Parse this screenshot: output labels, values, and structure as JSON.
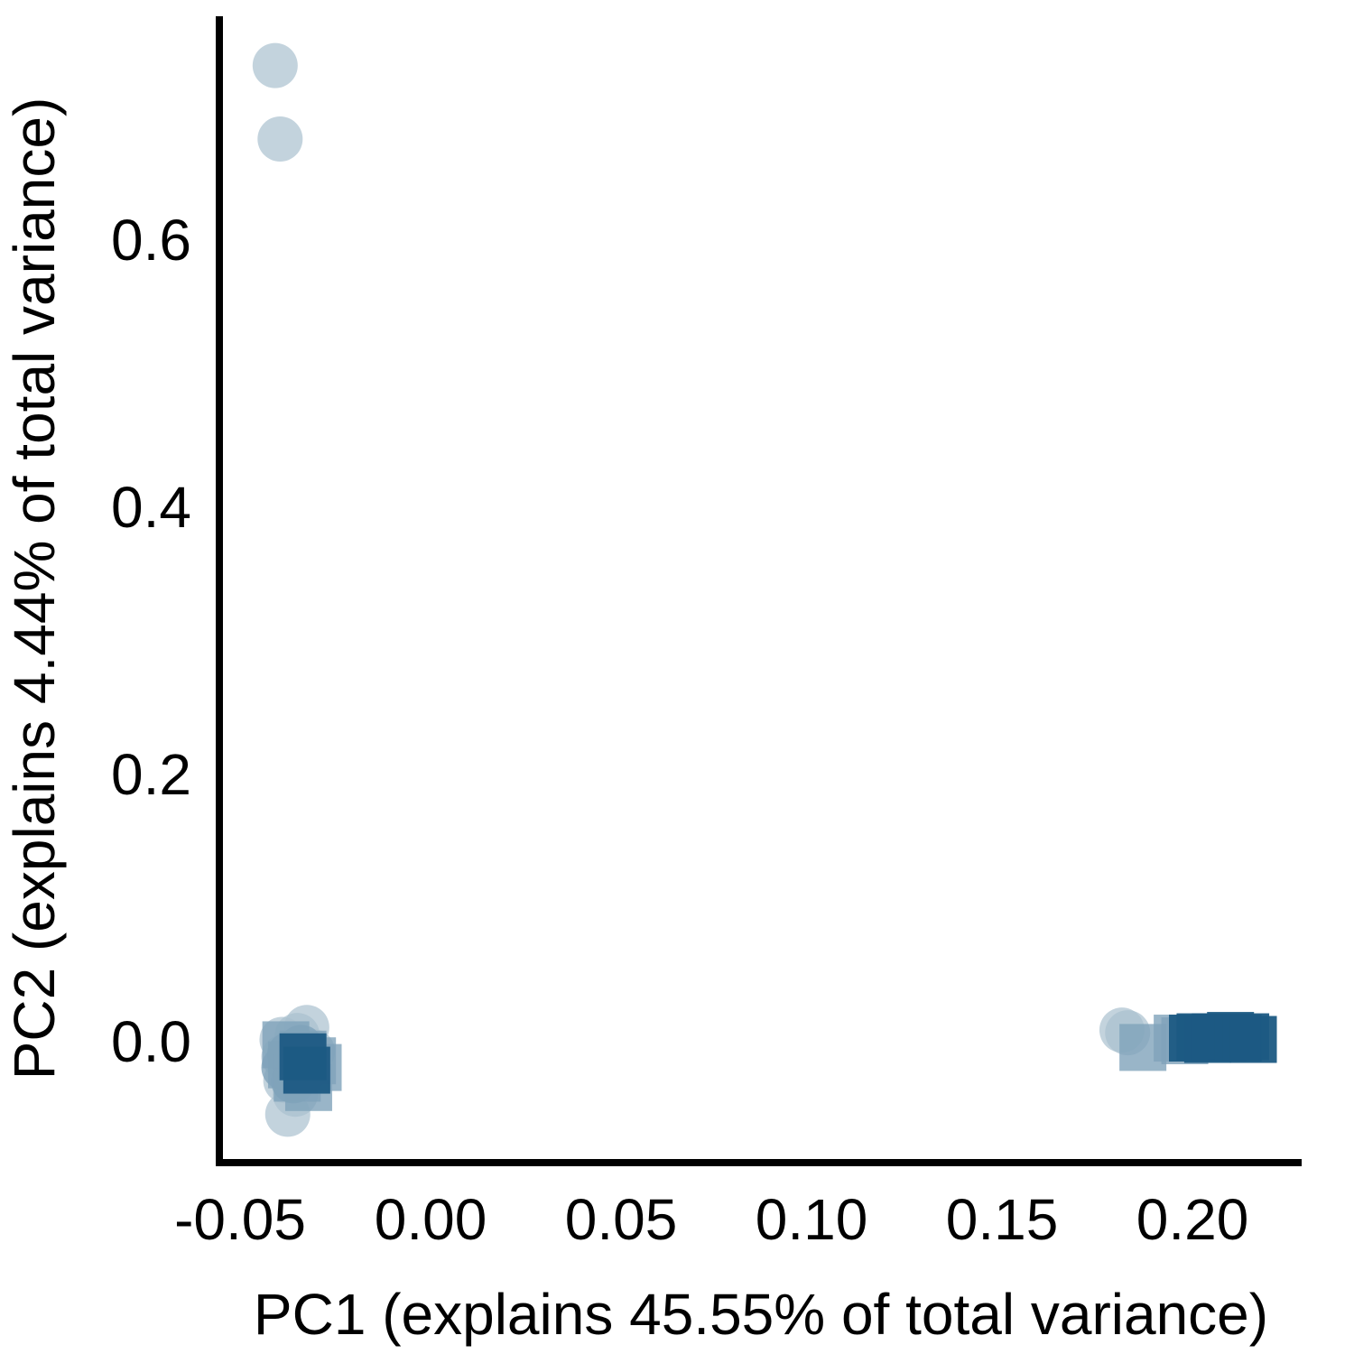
{
  "chart_data": {
    "type": "scatter",
    "title": "",
    "xlabel": "PC1 (explains 45.55% of total variance)",
    "ylabel": "PC2 (explains 4.44% of total variance)",
    "xlim": [
      -0.055,
      0.225
    ],
    "ylim": [
      -0.09,
      0.76
    ],
    "x_ticks": [
      -0.05,
      0.0,
      0.05,
      0.1,
      0.15,
      0.2
    ],
    "x_tick_labels": [
      "-0.05",
      "0.00",
      "0.05",
      "0.10",
      "0.15",
      "0.20"
    ],
    "y_ticks": [
      0.0,
      0.2,
      0.4,
      0.6
    ],
    "y_tick_labels": [
      "0.0",
      "0.2",
      "0.4",
      "0.6"
    ],
    "grid": false,
    "legend": "none",
    "series": [
      {
        "marker": "circle",
        "color": "#aac1cf",
        "opacity": 0.7,
        "points": [
          [
            -0.0408,
            0.73
          ],
          [
            -0.0395,
            0.675
          ],
          [
            -0.039,
            0.001
          ],
          [
            -0.0385,
            -0.012
          ],
          [
            -0.038,
            -0.03
          ],
          [
            -0.0375,
            -0.055
          ],
          [
            -0.036,
            -0.02
          ],
          [
            -0.035,
            0.004
          ],
          [
            -0.0345,
            -0.015
          ],
          [
            -0.034,
            -0.025
          ],
          [
            -0.0325,
            0.01
          ],
          [
            -0.031,
            -0.008
          ],
          [
            -0.0355,
            -0.04
          ],
          [
            0.1815,
            0.008
          ],
          [
            0.183,
            0.006
          ]
        ]
      },
      {
        "marker": "circle",
        "color": "#7fa3ba",
        "opacity": 0.8,
        "points": [
          [
            -0.0385,
            -0.02
          ],
          [
            -0.037,
            -0.01
          ],
          [
            -0.036,
            -0.03
          ],
          [
            -0.035,
            -0.015
          ],
          [
            -0.034,
            -0.005
          ],
          [
            -0.033,
            -0.022
          ]
        ]
      },
      {
        "marker": "square",
        "color": "#7fa3ba",
        "opacity": 0.8,
        "points": [
          [
            -0.038,
            -0.003
          ],
          [
            -0.0365,
            -0.018
          ],
          [
            -0.035,
            -0.028
          ],
          [
            -0.0335,
            -0.01
          ],
          [
            -0.032,
            -0.035
          ],
          [
            -0.031,
            -0.015
          ],
          [
            -0.0295,
            -0.02
          ],
          [
            0.187,
            -0.005
          ],
          [
            0.196,
            0.002
          ],
          [
            0.198,
            0.0
          ]
        ]
      },
      {
        "marker": "square",
        "color": "#1c5a83",
        "opacity": 0.95,
        "points": [
          [
            -0.0335,
            -0.012
          ],
          [
            -0.0325,
            -0.022
          ],
          [
            0.2,
            0.002
          ],
          [
            0.202,
            0.003
          ],
          [
            0.204,
            0.001
          ],
          [
            0.206,
            0.003
          ],
          [
            0.208,
            0.002
          ],
          [
            0.21,
            0.004
          ],
          [
            0.212,
            0.002
          ],
          [
            0.214,
            0.003
          ],
          [
            0.216,
            0.001
          ]
        ]
      }
    ]
  }
}
